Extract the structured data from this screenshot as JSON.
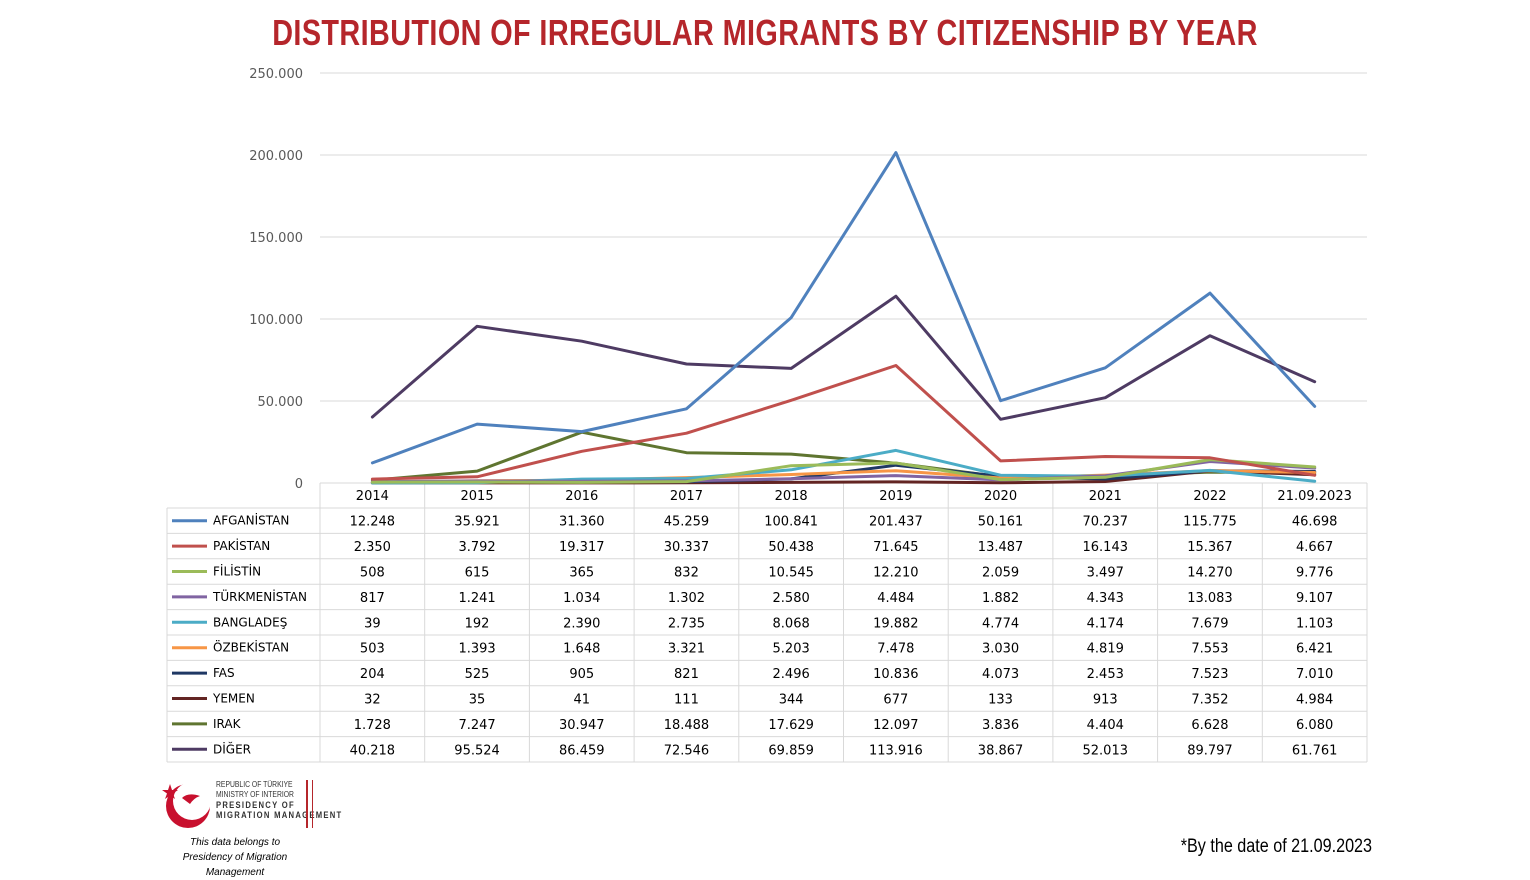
{
  "title": "DISTRIBUTION OF IRREGULAR MIGRANTS BY CITIZENSHIP BY YEAR",
  "footnote": "*By the date of 21.09.2023",
  "logo": {
    "lines": [
      "REPUBLIC OF TÜRKIYE",
      "MINISTRY OF INTERIOR",
      "PRESIDENCY OF",
      "MIGRATION MANAGEMENT"
    ]
  },
  "note": {
    "line1": "This data belongs to",
    "line2": "Presidency of Migration Management"
  },
  "chart_data": {
    "type": "line",
    "title": "DISTRIBUTION OF IRREGULAR MIGRANTS BY CITIZENSHIP BY YEAR",
    "categories": [
      "2014",
      "2015",
      "2016",
      "2017",
      "2018",
      "2019",
      "2020",
      "2021",
      "2022",
      "21.09.2023"
    ],
    "ylim": [
      0,
      250000
    ],
    "yticks": [
      0,
      50000,
      100000,
      150000,
      200000,
      250000
    ],
    "ytick_labels": [
      "0",
      "50.000",
      "100.000",
      "150.000",
      "200.000",
      "250.000"
    ],
    "grid": true,
    "legend_placement": "data-table-left",
    "series": [
      {
        "name": "AFGANİSTAN",
        "color": "#4f81bd",
        "values": [
          12248,
          35921,
          31360,
          45259,
          100841,
          201437,
          50161,
          70237,
          115775,
          46698
        ],
        "labels": [
          "12.248",
          "35.921",
          "31.360",
          "45.259",
          "100.841",
          "201.437",
          "50.161",
          "70.237",
          "115.775",
          "46.698"
        ]
      },
      {
        "name": "PAKİSTAN",
        "color": "#c0504d",
        "values": [
          2350,
          3792,
          19317,
          30337,
          50438,
          71645,
          13487,
          16143,
          15367,
          4667
        ],
        "labels": [
          "2.350",
          "3.792",
          "19.317",
          "30.337",
          "50.438",
          "71.645",
          "13.487",
          "16.143",
          "15.367",
          "4.667"
        ]
      },
      {
        "name": "FİLİSTİN",
        "color": "#9bbb59",
        "values": [
          508,
          615,
          365,
          832,
          10545,
          12210,
          2059,
          3497,
          14270,
          9776
        ],
        "labels": [
          "508",
          "615",
          "365",
          "832",
          "10.545",
          "12.210",
          "2.059",
          "3.497",
          "14.270",
          "9.776"
        ]
      },
      {
        "name": "TÜRKMENİSTAN",
        "color": "#8064a2",
        "values": [
          817,
          1241,
          1034,
          1302,
          2580,
          4484,
          1882,
          4343,
          13083,
          9107
        ],
        "labels": [
          "817",
          "1.241",
          "1.034",
          "1.302",
          "2.580",
          "4.484",
          "1.882",
          "4.343",
          "13.083",
          "9.107"
        ]
      },
      {
        "name": "BANGLADEŞ",
        "color": "#4bacc6",
        "values": [
          39,
          192,
          2390,
          2735,
          8068,
          19882,
          4774,
          4174,
          7679,
          1103
        ],
        "labels": [
          "39",
          "192",
          "2.390",
          "2.735",
          "8.068",
          "19.882",
          "4.774",
          "4.174",
          "7.679",
          "1.103"
        ]
      },
      {
        "name": "ÖZBEKİSTAN",
        "color": "#f79646",
        "values": [
          503,
          1393,
          1648,
          3321,
          5203,
          7478,
          3030,
          4819,
          7553,
          6421
        ],
        "labels": [
          "503",
          "1.393",
          "1.648",
          "3.321",
          "5.203",
          "7.478",
          "3.030",
          "4.819",
          "7.553",
          "6.421"
        ]
      },
      {
        "name": "FAS",
        "color": "#1f3864",
        "values": [
          204,
          525,
          905,
          821,
          2496,
          10836,
          4073,
          2453,
          7523,
          7010
        ],
        "labels": [
          "204",
          "525",
          "905",
          "821",
          "2.496",
          "10.836",
          "4.073",
          "2.453",
          "7.523",
          "7.010"
        ]
      },
      {
        "name": "YEMEN",
        "color": "#632523",
        "values": [
          32,
          35,
          41,
          111,
          344,
          677,
          133,
          913,
          7352,
          4984
        ],
        "labels": [
          "32",
          "35",
          "41",
          "111",
          "344",
          "677",
          "133",
          "913",
          "7.352",
          "4.984"
        ]
      },
      {
        "name": "IRAK",
        "color": "#5f7530",
        "values": [
          1728,
          7247,
          30947,
          18488,
          17629,
          12097,
          3836,
          4404,
          6628,
          6080
        ],
        "labels": [
          "1.728",
          "7.247",
          "30.947",
          "18.488",
          "17.629",
          "12.097",
          "3.836",
          "4.404",
          "6.628",
          "6.080"
        ]
      },
      {
        "name": "DİĞER",
        "color": "#4e3b63",
        "values": [
          40218,
          95524,
          86459,
          72546,
          69859,
          113916,
          38867,
          52013,
          89797,
          61761
        ],
        "labels": [
          "40.218",
          "95.524",
          "86.459",
          "72.546",
          "69.859",
          "113.916",
          "38.867",
          "52.013",
          "89.797",
          "61.761"
        ]
      }
    ]
  }
}
